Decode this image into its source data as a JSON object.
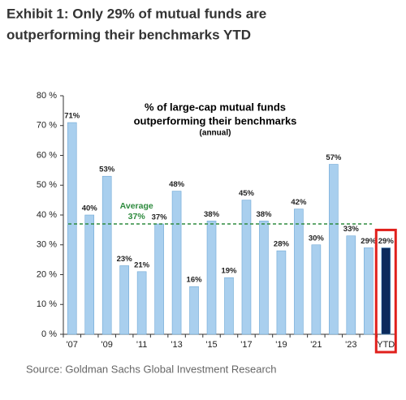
{
  "header": {
    "title_lines": [
      "Exhibit 1: Only 29% of mutual funds are",
      "outperforming their benchmarks YTD"
    ]
  },
  "chart_data": {
    "type": "bar",
    "title_lines": [
      "% of large-cap mutual funds",
      "outperforming their benchmarks"
    ],
    "subtitle": "(annual)",
    "categories": [
      "'07",
      null,
      "'09",
      null,
      "'11",
      null,
      "'13",
      null,
      "'15",
      null,
      "'17",
      null,
      "'19",
      null,
      "'21",
      null,
      "'23",
      null,
      "YTD"
    ],
    "values": [
      71,
      40,
      53,
      23,
      21,
      37,
      48,
      16,
      38,
      19,
      45,
      38,
      28,
      42,
      30,
      57,
      33,
      29,
      29
    ],
    "value_labels": [
      "71%",
      "40%",
      "53%",
      "23%",
      "21%",
      "37%",
      "48%",
      "16%",
      "38%",
      "19%",
      "45%",
      "38%",
      "28%",
      "42%",
      "30%",
      "57%",
      "33%",
      "29%",
      "29%"
    ],
    "colors": [
      "#a9cfee",
      "#a9cfee",
      "#a9cfee",
      "#a9cfee",
      "#a9cfee",
      "#a9cfee",
      "#a9cfee",
      "#a9cfee",
      "#a9cfee",
      "#a9cfee",
      "#a9cfee",
      "#a9cfee",
      "#a9cfee",
      "#a9cfee",
      "#a9cfee",
      "#a9cfee",
      "#a9cfee",
      "#a9cfee",
      "#0c2a5c"
    ],
    "ylim": [
      0,
      80
    ],
    "yticks": [
      {
        "value": 0,
        "label": "0 %"
      },
      {
        "value": 10,
        "label": "10 %"
      },
      {
        "value": 20,
        "label": "20 %"
      },
      {
        "value": 30,
        "label": "30 %"
      },
      {
        "value": 40,
        "label": "40 %"
      },
      {
        "value": 50,
        "label": "50 %"
      },
      {
        "value": 60,
        "label": "60 %"
      },
      {
        "value": 70,
        "label": "70 %"
      },
      {
        "value": 80,
        "label": "80 %"
      }
    ],
    "grid": false,
    "average": {
      "name": "Average",
      "value": 37,
      "label": "37%",
      "color": "#2e8b3e"
    },
    "highlight_color": "#e0201c"
  },
  "footer": {
    "source": "Source: Goldman Sachs Global Investment Research"
  }
}
